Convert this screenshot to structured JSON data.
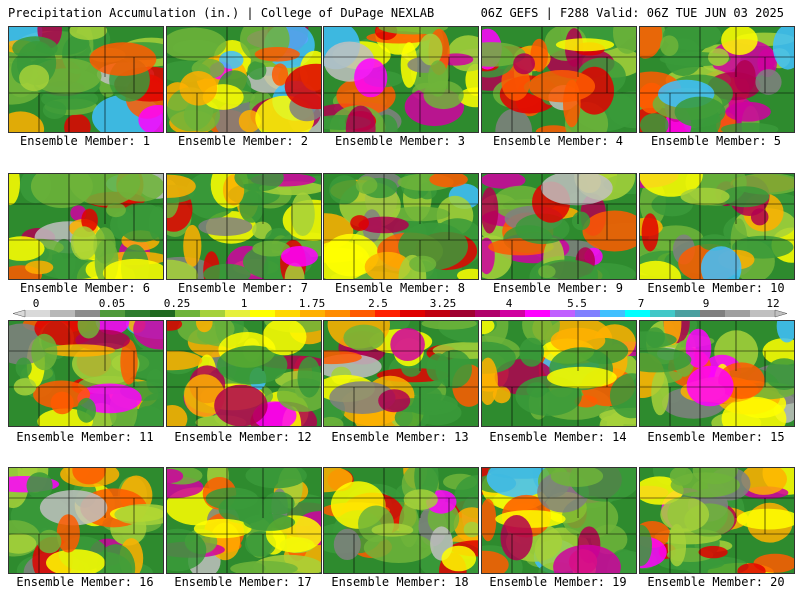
{
  "header": {
    "left": "Precipitation Accumulation (in.) | College of DuPage NEXLAB",
    "right": "06Z GEFS | F288 Valid: 06Z TUE JUN 03 2025"
  },
  "panels": [
    {
      "label": "Ensemble Member: 1"
    },
    {
      "label": "Ensemble Member: 2"
    },
    {
      "label": "Ensemble Member: 3"
    },
    {
      "label": "Ensemble Member: 4"
    },
    {
      "label": "Ensemble Member: 5"
    },
    {
      "label": "Ensemble Member: 6"
    },
    {
      "label": "Ensemble Member: 7"
    },
    {
      "label": "Ensemble Member: 8"
    },
    {
      "label": "Ensemble Member: 9"
    },
    {
      "label": "Ensemble Member: 10"
    },
    {
      "label": "Ensemble Member: 11"
    },
    {
      "label": "Ensemble Member: 12"
    },
    {
      "label": "Ensemble Member: 13"
    },
    {
      "label": "Ensemble Member: 14"
    },
    {
      "label": "Ensemble Member: 15"
    },
    {
      "label": "Ensemble Member: 16"
    },
    {
      "label": "Ensemble Member: 17"
    },
    {
      "label": "Ensemble Member: 18"
    },
    {
      "label": "Ensemble Member: 19"
    },
    {
      "label": "Ensemble Member: 20"
    }
  ],
  "colorbar": {
    "tick_labels": [
      "0",
      "0.05",
      "0.25",
      "1",
      "1.75",
      "2.5",
      "3.25",
      "4",
      "5.5",
      "7",
      "9",
      "12"
    ],
    "colors": [
      "#d9d9d9",
      "#b8b8b8",
      "#8c8c8c",
      "#4f9a3a",
      "#2e7d2e",
      "#1f6a1f",
      "#6fb43a",
      "#a6d13a",
      "#e6f03c",
      "#ffff00",
      "#ffd700",
      "#ffb000",
      "#ff8c00",
      "#ff5a00",
      "#ff2000",
      "#e00000",
      "#c00010",
      "#a00030",
      "#b0006a",
      "#d000a0",
      "#ff00ff",
      "#c060ff",
      "#8080ff",
      "#40c0ff",
      "#00ffff",
      "#40c8c8",
      "#4aa0a0",
      "#808080",
      "#a0a0a0",
      "#c0c0c0"
    ]
  }
}
